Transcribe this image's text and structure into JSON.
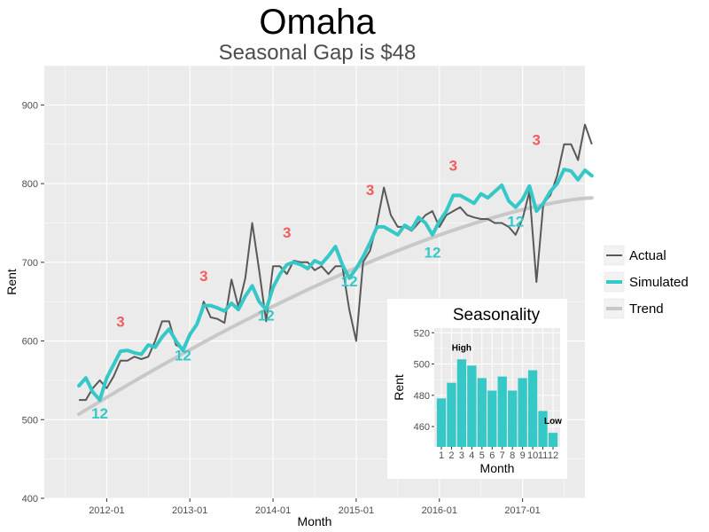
{
  "chart_data": [
    {
      "type": "line",
      "title": "Omaha",
      "subtitle": "Seasonal Gap is $48",
      "xlabel": "Month",
      "ylabel": "Rent",
      "ylim": [
        400,
        950
      ],
      "xlim": [
        "2011-04",
        "2017-10"
      ],
      "x_ticks": [
        "2012-01",
        "2013-01",
        "2014-01",
        "2015-01",
        "2016-01",
        "2017-01"
      ],
      "y_ticks": [
        400,
        500,
        600,
        700,
        800,
        900
      ],
      "grid": true,
      "legend_position": "right",
      "x": [
        "2011-09",
        "2011-10",
        "2011-11",
        "2011-12",
        "2012-01",
        "2012-02",
        "2012-03",
        "2012-04",
        "2012-05",
        "2012-06",
        "2012-07",
        "2012-08",
        "2012-09",
        "2012-10",
        "2012-11",
        "2012-12",
        "2013-01",
        "2013-02",
        "2013-03",
        "2013-04",
        "2013-05",
        "2013-06",
        "2013-07",
        "2013-08",
        "2013-09",
        "2013-10",
        "2013-11",
        "2013-12",
        "2014-01",
        "2014-02",
        "2014-03",
        "2014-04",
        "2014-05",
        "2014-06",
        "2014-07",
        "2014-08",
        "2014-09",
        "2014-10",
        "2014-11",
        "2014-12",
        "2015-01",
        "2015-02",
        "2015-03",
        "2015-04",
        "2015-05",
        "2015-06",
        "2015-07",
        "2015-08",
        "2015-09",
        "2015-10",
        "2015-11",
        "2015-12",
        "2016-01",
        "2016-02",
        "2016-03",
        "2016-04",
        "2016-05",
        "2016-06",
        "2016-07",
        "2016-08",
        "2016-09",
        "2016-10",
        "2016-11",
        "2016-12",
        "2017-01",
        "2017-02",
        "2017-03",
        "2017-04",
        "2017-05",
        "2017-06",
        "2017-07",
        "2017-08"
      ],
      "series": [
        {
          "name": "Actual",
          "color": "#595959",
          "values": [
            525,
            525,
            540,
            550,
            540,
            555,
            575,
            575,
            580,
            577,
            580,
            600,
            625,
            625,
            595,
            590,
            610,
            620,
            650,
            630,
            628,
            623,
            678,
            643,
            680,
            750,
            690,
            625,
            695,
            695,
            685,
            702,
            700,
            700,
            690,
            695,
            685,
            695,
            695,
            640,
            600,
            700,
            715,
            750,
            795,
            760,
            745,
            745,
            740,
            750,
            760,
            765,
            745,
            760,
            765,
            770,
            760,
            757,
            755,
            755,
            750,
            750,
            745,
            735,
            755,
            790,
            675,
            775,
            785,
            810,
            850,
            850
          ],
          "values_tail": [
            830,
            875,
            850
          ]
        },
        {
          "name": "Simulated",
          "color": "#36C7C7",
          "values": [
            543,
            553,
            535,
            525,
            553,
            570,
            587,
            588,
            585,
            583,
            595,
            592,
            605,
            615,
            600,
            588,
            608,
            621,
            645,
            645,
            642,
            638,
            648,
            640,
            657,
            670,
            650,
            640,
            668,
            685,
            697,
            700,
            697,
            692,
            702,
            698,
            708,
            720,
            697,
            680,
            692,
            707,
            725,
            745,
            745,
            740,
            735,
            747,
            742,
            757,
            750,
            735,
            752,
            765,
            785,
            785,
            780,
            775,
            787,
            782,
            790,
            798,
            778,
            770,
            780,
            797,
            765,
            775,
            790,
            800,
            818,
            816
          ],
          "values_tail": [
            805,
            817,
            810
          ]
        },
        {
          "name": "Trend",
          "color": "#C8C8C8",
          "start": 507,
          "end": 782
        }
      ],
      "annotations": {
        "peaks": [
          {
            "label": "3",
            "x": "2012-03",
            "y": 625
          },
          {
            "label": "3",
            "x": "2013-03",
            "y": 683
          },
          {
            "label": "3",
            "x": "2014-03",
            "y": 738
          },
          {
            "label": "3",
            "x": "2015-03",
            "y": 792
          },
          {
            "label": "3",
            "x": "2016-03",
            "y": 823
          },
          {
            "label": "3",
            "x": "2017-03",
            "y": 856
          }
        ],
        "troughs": [
          {
            "label": "12",
            "x": "2011-12",
            "y": 508
          },
          {
            "label": "12",
            "x": "2012-12",
            "y": 582
          },
          {
            "label": "12",
            "x": "2013-12",
            "y": 633
          },
          {
            "label": "12",
            "x": "2014-12",
            "y": 676
          },
          {
            "label": "12",
            "x": "2015-12",
            "y": 713
          },
          {
            "label": "12",
            "x": "2016-12",
            "y": 752
          }
        ],
        "peak_color": "#F25C5C",
        "trough_color": "#36C7C7"
      }
    },
    {
      "type": "bar",
      "title": "Seasonality",
      "xlabel": "Month",
      "ylabel": "Rent",
      "categories": [
        "1",
        "2",
        "3",
        "4",
        "5",
        "6",
        "7",
        "8",
        "9",
        "10",
        "11",
        "12"
      ],
      "values": [
        478,
        488,
        503,
        499,
        491,
        483,
        492,
        483,
        491,
        496,
        470,
        456
      ],
      "ylim": [
        447,
        523
      ],
      "y_ticks": [
        460,
        480,
        500,
        520
      ],
      "color": "#36C7C7",
      "labels": [
        {
          "text": "High",
          "category": "3"
        },
        {
          "text": "Low",
          "category": "12"
        }
      ]
    }
  ],
  "colors": {
    "panel_bg": "#EBEBEB",
    "grid": "#FFFFFF",
    "axis_text": "#4D4D4D"
  }
}
